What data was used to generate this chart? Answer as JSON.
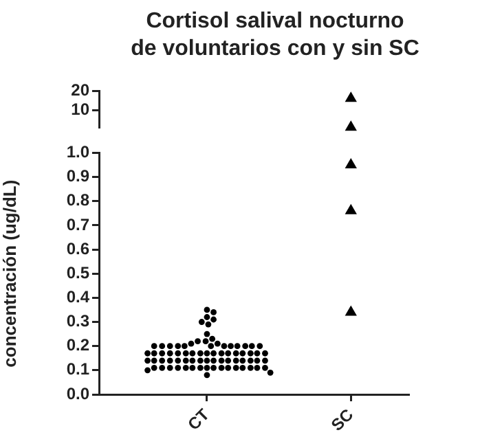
{
  "chart_data": [
    {
      "type": "scatter",
      "title": "Cortisol salival nocturno de voluntarios con y sin SC",
      "categories": [
        "CT",
        "SC"
      ],
      "tick_labels": "y",
      "ylim": [
        1,
        20
      ],
      "yticks": [
        10,
        20
      ],
      "series": [
        {
          "x": [
            "SC",
            "SC"
          ],
          "values": [
            16,
            1.1
          ],
          "color": "#000000",
          "marker": "triangle"
        }
      ]
    },
    {
      "type": "scatter",
      "ylabel": "concentración (ug/dL)",
      "categories": [
        "CT",
        "SC"
      ],
      "ylim": [
        0,
        1
      ],
      "yticks": [
        {
          "value": 0,
          "label": "0.0"
        },
        0.1,
        0.2,
        0.3,
        0.4,
        0.5,
        0.6,
        0.7,
        0.8,
        0.9,
        {
          "value": 1,
          "label": "1.0"
        }
      ],
      "series": [
        {
          "x": [
            "CT",
            "CT",
            "CT",
            "CT",
            "CT",
            "CT",
            "CT",
            "CT",
            "CT",
            "CT",
            "CT",
            "CT",
            "CT",
            "CT",
            "CT",
            "CT",
            "CT",
            "CT",
            "CT",
            "CT",
            "CT",
            "CT",
            "CT",
            "CT",
            "CT",
            "CT",
            "CT",
            "CT",
            "CT",
            "CT",
            "CT",
            "CT",
            "CT",
            "CT",
            "CT",
            "CT",
            "CT",
            "CT",
            "CT",
            "CT",
            "CT",
            "CT",
            "CT",
            "CT",
            "CT",
            "CT",
            "CT",
            "CT",
            "CT",
            "CT",
            "CT",
            "CT",
            "CT",
            "CT",
            "CT",
            "CT",
            "CT",
            "CT",
            "CT",
            "CT",
            "CT",
            "CT",
            "CT",
            "CT",
            "CT",
            "CT",
            "CT",
            "CT",
            "CT",
            "CT",
            "CT",
            "CT",
            "CT",
            "CT",
            "CT",
            "CT",
            "CT"
          ],
          "values": [
            0.35,
            0.34,
            0.32,
            0.31,
            0.3,
            0.29,
            0.25,
            0.23,
            0.22,
            0.22,
            0.21,
            0.21,
            0.2,
            0.2,
            0.2,
            0.2,
            0.2,
            0.2,
            0.2,
            0.2,
            0.2,
            0.2,
            0.2,
            0.2,
            0.17,
            0.17,
            0.17,
            0.17,
            0.17,
            0.17,
            0.17,
            0.17,
            0.17,
            0.17,
            0.17,
            0.17,
            0.17,
            0.17,
            0.17,
            0.17,
            0.17,
            0.14,
            0.14,
            0.14,
            0.14,
            0.14,
            0.14,
            0.14,
            0.14,
            0.14,
            0.14,
            0.14,
            0.14,
            0.14,
            0.14,
            0.14,
            0.14,
            0.14,
            0.11,
            0.11,
            0.11,
            0.11,
            0.11,
            0.11,
            0.11,
            0.11,
            0.11,
            0.11,
            0.11,
            0.11,
            0.11,
            0.11,
            0.11,
            0.11,
            0.1,
            0.09,
            0.08
          ],
          "color": "#000000",
          "marker": "circle"
        },
        {
          "x": [
            "SC",
            "SC",
            "SC"
          ],
          "values": [
            0.95,
            0.76,
            0.34
          ],
          "color": "#000000",
          "marker": "triangle"
        }
      ]
    }
  ]
}
